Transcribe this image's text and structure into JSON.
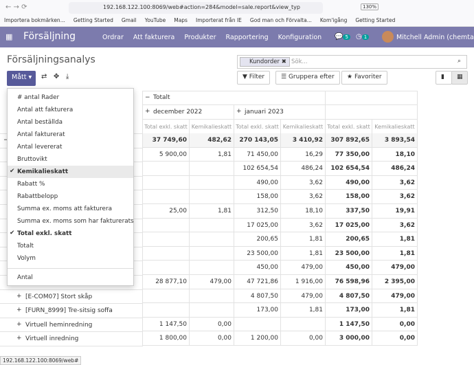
{
  "browser": {
    "url": "192.168.122.100:8069/web#action=284&model=sale.report&view_typ",
    "zoom": "130%",
    "bookmarks": [
      "Importera bokmärken...",
      "Getting Started",
      "Gmail",
      "YouTube",
      "Maps",
      "Importerat från IE",
      "God man och Förvalta...",
      "Kom'igång",
      "Getting Started"
    ],
    "status": "192.168.122.100:8069/web#"
  },
  "navbar": {
    "app": "Försäljning",
    "menu": [
      "Ordrar",
      "Att fakturera",
      "Produkter",
      "Rapportering",
      "Konfiguration"
    ],
    "badges": [
      "5",
      "1"
    ],
    "user": "Mitchell Admin (chemtax)"
  },
  "control": {
    "title": "Försäljningsanalys",
    "measures_button": "Mått",
    "facet": "Kundorder",
    "search_placeholder": "Sök...",
    "buttons": [
      "Filter",
      "Gruppera efter",
      "Favoriter"
    ]
  },
  "measures_menu": {
    "items": [
      {
        "label": "# antal Rader",
        "checked": false
      },
      {
        "label": "Antal att fakturera",
        "checked": false
      },
      {
        "label": "Antal beställda",
        "checked": false
      },
      {
        "label": "Antal fakturerat",
        "checked": false
      },
      {
        "label": "Antal levererat",
        "checked": false
      },
      {
        "label": "Bruttovikt",
        "checked": false
      },
      {
        "label": "Kemikalieskatt",
        "checked": true,
        "hovered": true
      },
      {
        "label": "Rabatt %",
        "checked": false
      },
      {
        "label": "Rabattbelopp",
        "checked": false
      },
      {
        "label": "Summa ex. moms att fakturera",
        "checked": false
      },
      {
        "label": "Summa ex. moms som har fakturerats",
        "checked": false
      },
      {
        "label": "Total exkl. skatt",
        "checked": true
      },
      {
        "label": "Totalt",
        "checked": false
      },
      {
        "label": "Volym",
        "checked": false
      }
    ],
    "extra": "Antal"
  },
  "pivot": {
    "column_total": "Totalt",
    "months": [
      "december 2022",
      "januari 2023"
    ],
    "measures": [
      "Total exkl. skatt",
      "Kemikalieskatt"
    ],
    "rows": [
      {
        "total": true,
        "cells": [
          "37 749,60",
          "482,62",
          "270 143,05",
          "3 410,92",
          "307 892,65",
          "3 893,54"
        ]
      },
      {
        "cells": [
          "5 900,00",
          "1,81",
          "71 450,00",
          "16,29",
          "77 350,00",
          "18,10"
        ]
      },
      {
        "cells": [
          null,
          null,
          "102 654,54",
          "486,24",
          "102 654,54",
          "486,24"
        ]
      },
      {
        "cells": [
          null,
          null,
          "490,00",
          "3,62",
          "490,00",
          "3,62"
        ]
      },
      {
        "cells": [
          null,
          null,
          "158,00",
          "3,62",
          "158,00",
          "3,62"
        ]
      },
      {
        "cells": [
          "25,00",
          "1,81",
          "312,50",
          "18,10",
          "337,50",
          "19,91"
        ]
      },
      {
        "cells": [
          null,
          null,
          "17 025,00",
          "3,62",
          "17 025,00",
          "3,62"
        ]
      },
      {
        "cells": [
          null,
          null,
          "200,65",
          "1,81",
          "200,65",
          "1,81"
        ]
      },
      {
        "cells": [
          null,
          null,
          "23 500,00",
          "1,81",
          "23 500,00",
          "1,81"
        ]
      },
      {
        "cells": [
          null,
          null,
          "450,00",
          "479,00",
          "450,00",
          "479,00"
        ]
      },
      {
        "cells": [
          "28 877,10",
          "479,00",
          "47 721,86",
          "1 916,00",
          "76 598,96",
          "2 395,00"
        ]
      },
      {
        "label": "[E-COM07] Stort skåp",
        "cells": [
          null,
          null,
          "4 807,50",
          "479,00",
          "4 807,50",
          "479,00"
        ]
      },
      {
        "label": "[FURN_8999] Tre-sitsig soffa",
        "cells": [
          null,
          null,
          "173,00",
          "1,81",
          "173,00",
          "1,81"
        ]
      },
      {
        "label": "Virtuell heminredning",
        "cells": [
          "1 147,50",
          "0,00",
          null,
          null,
          "1 147,50",
          "0,00"
        ]
      },
      {
        "label": "Virtuell inredning",
        "cells": [
          "1 800,00",
          "0,00",
          "1 200,00",
          "0,00",
          "3 000,00",
          "0,00"
        ]
      }
    ]
  }
}
